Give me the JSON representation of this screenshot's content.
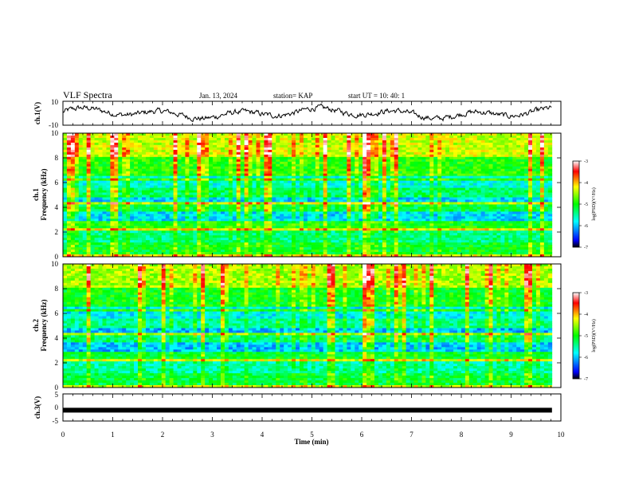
{
  "header": {
    "title": "VLF Spectra",
    "date": "Jan. 13, 2024",
    "station": "station= KAP",
    "start_time": "start  UT  =   10: 40: 1"
  },
  "chart_data": [
    {
      "type": "line",
      "name": "ch1-waveform",
      "ylabel": "ch.1(V)",
      "ylim": [
        -10,
        10
      ],
      "yticks": [
        "10",
        "-10"
      ],
      "xlim": [
        0,
        10
      ],
      "series_color": "#000000"
    },
    {
      "type": "heatmap",
      "name": "ch1-spectrogram",
      "ylabel_line1": "ch.1",
      "ylabel_line2": "Frequency  (kHz)",
      "ylim": [
        0,
        10
      ],
      "yticks": [
        "0",
        "2",
        "4",
        "6",
        "8",
        "10"
      ],
      "xlim": [
        0,
        10
      ],
      "data_end_min": 9.82,
      "colorbar": {
        "range": [
          -7,
          -3
        ],
        "ticks": [
          "-3",
          "-4",
          "-5",
          "-6",
          "-7"
        ],
        "label": "log(PSD)(V²/Hz)",
        "colors": [
          "#000000",
          "#0000ff",
          "#00ffff",
          "#00ff00",
          "#ffff00",
          "#ff0000",
          "#ffffff"
        ]
      }
    },
    {
      "type": "heatmap",
      "name": "ch2-spectrogram",
      "ylabel_line1": "ch.2",
      "ylabel_line2": "Frequency  (kHz)",
      "ylim": [
        0,
        10
      ],
      "yticks": [
        "0",
        "2",
        "4",
        "6",
        "8",
        "10"
      ],
      "xlim": [
        0,
        10
      ],
      "data_end_min": 9.82,
      "colorbar": {
        "range": [
          -7,
          -3
        ],
        "ticks": [
          "-3",
          "-4",
          "-5",
          "-6",
          "-7"
        ],
        "label": "log(PSD)(V²/Hz)"
      }
    },
    {
      "type": "line",
      "name": "ch3-waveform",
      "ylabel": "ch.3(V)",
      "ylim": [
        -5,
        5
      ],
      "yticks": [
        "5",
        "0",
        "-5"
      ],
      "xlim": [
        0,
        10
      ],
      "level": -1,
      "xlabel": "Time  (min)",
      "xticks": [
        "0",
        "1",
        "2",
        "3",
        "4",
        "5",
        "6",
        "7",
        "8",
        "9",
        "10"
      ]
    }
  ]
}
